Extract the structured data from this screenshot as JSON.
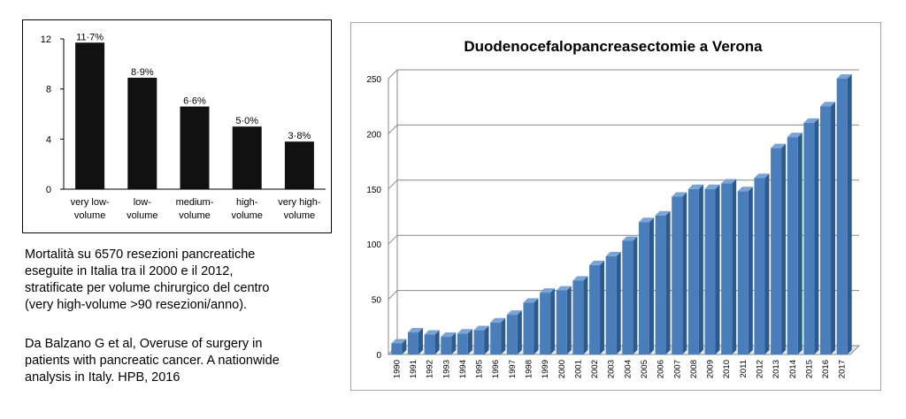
{
  "left_chart": {
    "chart_data": {
      "type": "bar",
      "categories": [
        [
          "very low-",
          "volume"
        ],
        [
          "low-",
          "volume"
        ],
        [
          "medium-",
          "volume"
        ],
        [
          "high-",
          "volume"
        ],
        [
          "very high-",
          "volume"
        ]
      ],
      "values": [
        11.7,
        8.9,
        6.6,
        5.0,
        3.8
      ],
      "data_labels": [
        "11·7%",
        "8·9%",
        "6·6%",
        "5·0%",
        "3·8%"
      ],
      "yticks": [
        "0",
        "4",
        "8",
        "12"
      ],
      "ylim": [
        0,
        12
      ],
      "bar_color": "#111111"
    }
  },
  "right_chart": {
    "chart_data": {
      "type": "bar",
      "title": "Duodenocefalopancreasectomie a Verona",
      "categories": [
        "1990",
        "1991",
        "1992",
        "1993",
        "1994",
        "1995",
        "1996",
        "1997",
        "1998",
        "1999",
        "2000",
        "2001",
        "2002",
        "2003",
        "2004",
        "2005",
        "2006",
        "2007",
        "2008",
        "2009",
        "2010",
        "2011",
        "2012",
        "2013",
        "2014",
        "2015",
        "2016",
        "2017"
      ],
      "values": [
        10,
        20,
        18,
        16,
        19,
        22,
        29,
        36,
        47,
        56,
        58,
        67,
        81,
        89,
        103,
        120,
        126,
        143,
        150,
        150,
        155,
        148,
        160,
        187,
        197,
        210,
        225,
        250
      ],
      "yticks": [
        "0",
        "50",
        "100",
        "150",
        "200",
        "250"
      ],
      "ylim": [
        0,
        250
      ],
      "grid": true,
      "bar_color": "#4a7ebb"
    }
  },
  "caption_1": [
    "Mortalità su 6570 resezioni pancreatiche",
    "eseguite in Italia tra il 2000 e il 2012,",
    "stratificate per volume chirurgico del centro",
    "(very high-volume >90 resezioni/anno)."
  ],
  "caption_2": [
    "Da Balzano G et al, Overuse of surgery in",
    "patients with pancreatic cancer. A nationwide",
    "analysis in Italy. HPB, 2016"
  ]
}
